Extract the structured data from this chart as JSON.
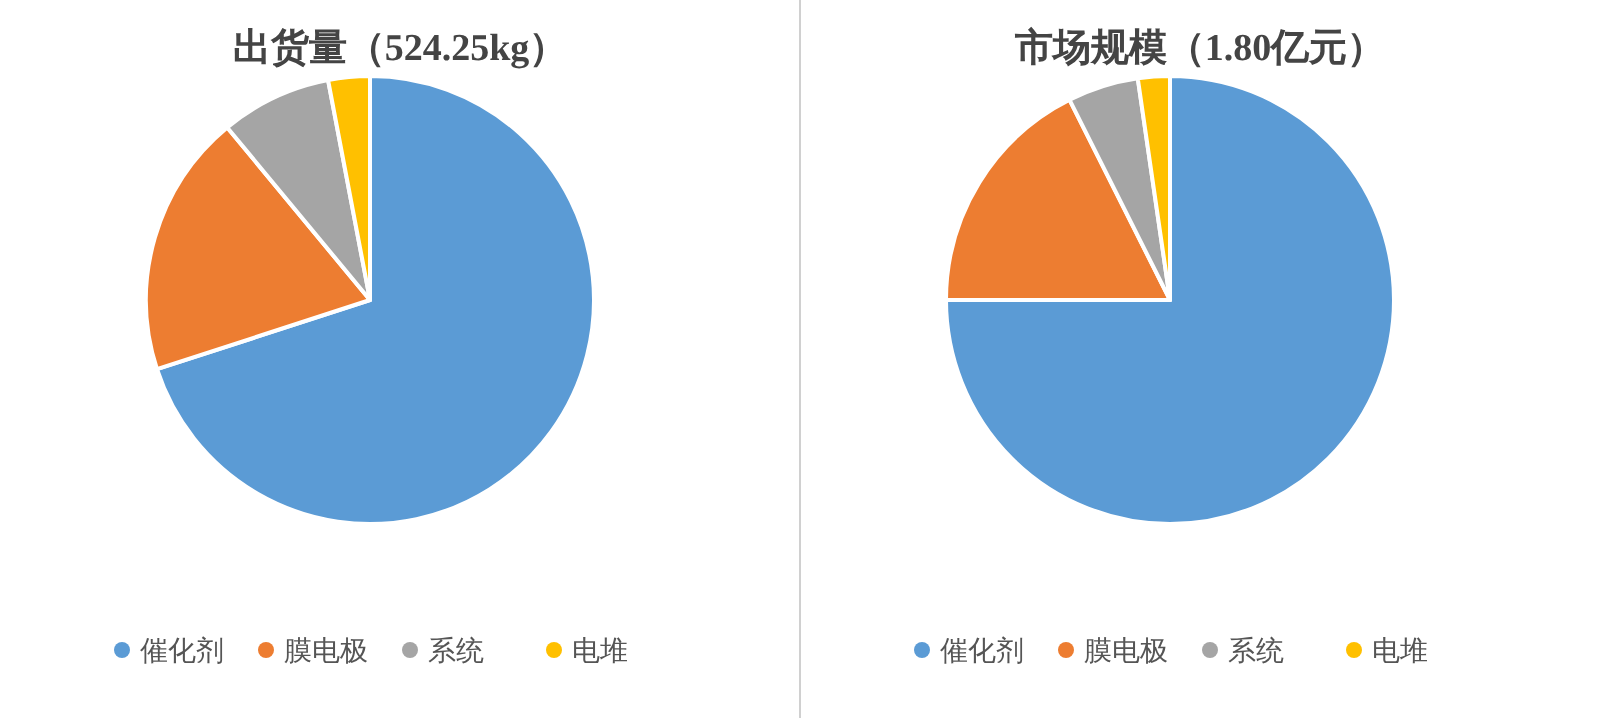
{
  "chart_data": [
    {
      "type": "pie",
      "title": "出货量（524.25kg）",
      "categories": [
        "催化剂",
        "膜电极",
        "系统",
        "电堆"
      ],
      "values": [
        70,
        19,
        8,
        3
      ],
      "colors": [
        "#5b9bd5",
        "#ed7d31",
        "#a5a5a5",
        "#ffc000"
      ],
      "legend": "bottom"
    },
    {
      "type": "pie",
      "title": "市场规模（1.80亿元）",
      "categories": [
        "催化剂",
        "膜电极",
        "系统",
        "电堆"
      ],
      "values": [
        75,
        17.6,
        5.1,
        2.3
      ],
      "colors": [
        "#5b9bd5",
        "#ed7d31",
        "#a5a5a5",
        "#ffc000"
      ],
      "legend": "bottom"
    }
  ]
}
